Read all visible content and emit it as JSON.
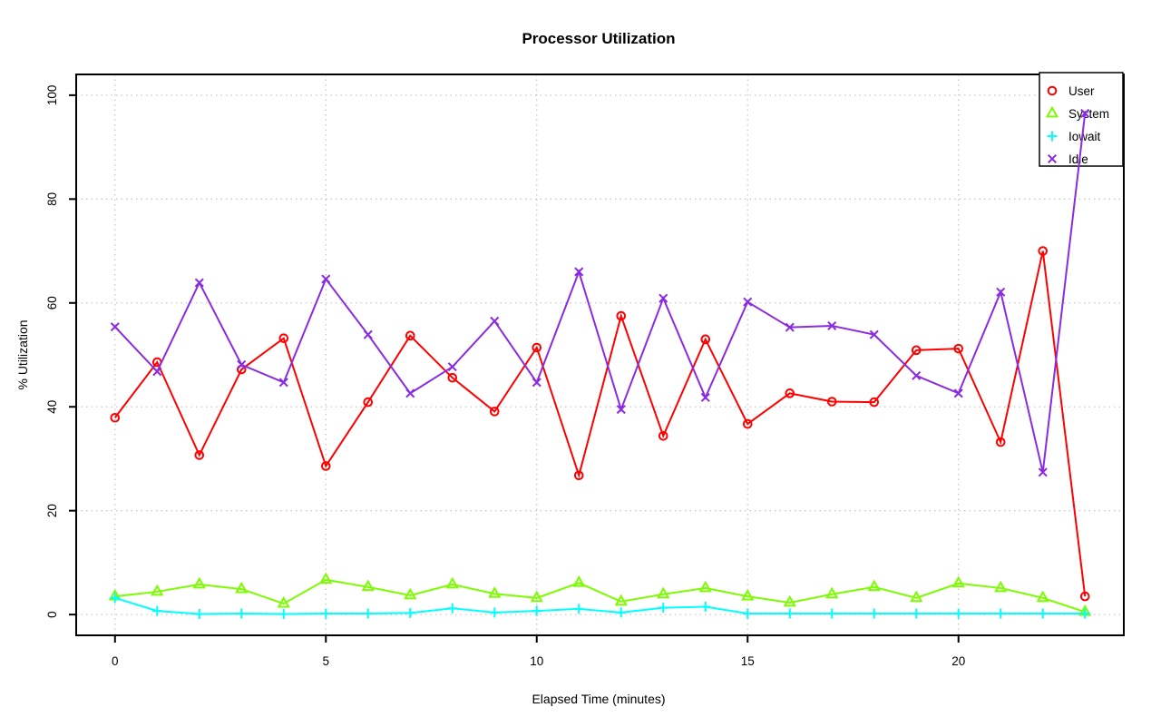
{
  "chart_data": {
    "type": "line",
    "title": "Processor Utilization",
    "xlabel": "Elapsed Time (minutes)",
    "ylabel": "% Utilization",
    "x": [
      0,
      1,
      2,
      3,
      4,
      5,
      6,
      7,
      8,
      9,
      10,
      11,
      12,
      13,
      14,
      15,
      16,
      17,
      18,
      19,
      20,
      21,
      22,
      23
    ],
    "xticks": [
      0,
      5,
      10,
      15,
      20
    ],
    "yticks": [
      0,
      20,
      40,
      60,
      80,
      100
    ],
    "xlim": [
      0,
      23
    ],
    "ylim": [
      0,
      100
    ],
    "grid": "dotted",
    "grid_color": "#c8c8c8",
    "axis_color": "#000000",
    "legend_position": "top-right",
    "series": [
      {
        "name": "User",
        "color": "#ff0000",
        "marker": "circle",
        "values": [
          37.9,
          48.6,
          30.7,
          47.2,
          53.2,
          28.6,
          40.9,
          53.7,
          45.6,
          39.1,
          51.4,
          26.8,
          57.5,
          34.4,
          53.0,
          36.7,
          42.6,
          41.0,
          40.9,
          50.9,
          51.2,
          33.2,
          70.0,
          3.5
        ]
      },
      {
        "name": "System",
        "color": "#7cfc00",
        "marker": "triangle",
        "values": [
          3.5,
          4.4,
          5.8,
          4.9,
          2.1,
          6.7,
          5.3,
          3.7,
          5.8,
          4.0,
          3.2,
          6.1,
          2.5,
          3.9,
          5.1,
          3.5,
          2.3,
          3.9,
          5.3,
          3.2,
          6.0,
          5.1,
          3.2,
          0.5
        ]
      },
      {
        "name": "Iowait",
        "color": "#00ffff",
        "marker": "plus",
        "values": [
          3.2,
          0.7,
          0.1,
          0.2,
          0.1,
          0.2,
          0.2,
          0.3,
          1.2,
          0.4,
          0.7,
          1.1,
          0.4,
          1.3,
          1.5,
          0.2,
          0.2,
          0.2,
          0.2,
          0.2,
          0.2,
          0.2,
          0.2,
          0.2
        ]
      },
      {
        "name": "Idle",
        "color": "#8a2be2",
        "marker": "x",
        "values": [
          55.4,
          46.8,
          63.9,
          48.1,
          44.7,
          64.6,
          53.9,
          42.6,
          47.7,
          56.5,
          44.7,
          66.0,
          39.5,
          60.9,
          41.8,
          60.2,
          55.3,
          55.6,
          53.9,
          46.0,
          42.6,
          62.1,
          27.4,
          96.5
        ]
      }
    ]
  }
}
